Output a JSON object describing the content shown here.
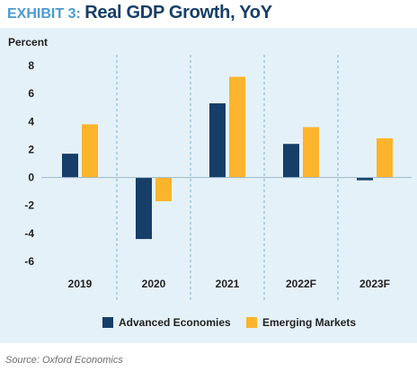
{
  "header": {
    "exhibit_label": "EXHIBIT 3:",
    "title": "Real GDP Growth, YoY"
  },
  "colors": {
    "panel_background": "#e5f1f8",
    "advanced": "#163e69",
    "emerging": "#fbb42c",
    "title_navy": "#163e69",
    "title_blue": "#4a9bd1"
  },
  "chart_data": {
    "type": "bar",
    "ylabel": "Percent",
    "xlabel": "",
    "ylim": [
      -6,
      8
    ],
    "yticks": [
      8,
      6,
      4,
      2,
      0,
      -2,
      -4,
      -6
    ],
    "categories": [
      "2019",
      "2020",
      "2021",
      "2022F",
      "2023F"
    ],
    "series": [
      {
        "name": "Advanced Economies",
        "color": "#163e69",
        "values": [
          1.7,
          -4.4,
          5.3,
          2.4,
          -0.2
        ]
      },
      {
        "name": "Emerging Markets",
        "color": "#fbb42c",
        "values": [
          3.8,
          -1.7,
          7.2,
          3.6,
          2.8
        ]
      }
    ],
    "legend_position": "bottom",
    "grid": "dashed vertical separators between categories"
  },
  "source": "Source: Oxford Economics"
}
